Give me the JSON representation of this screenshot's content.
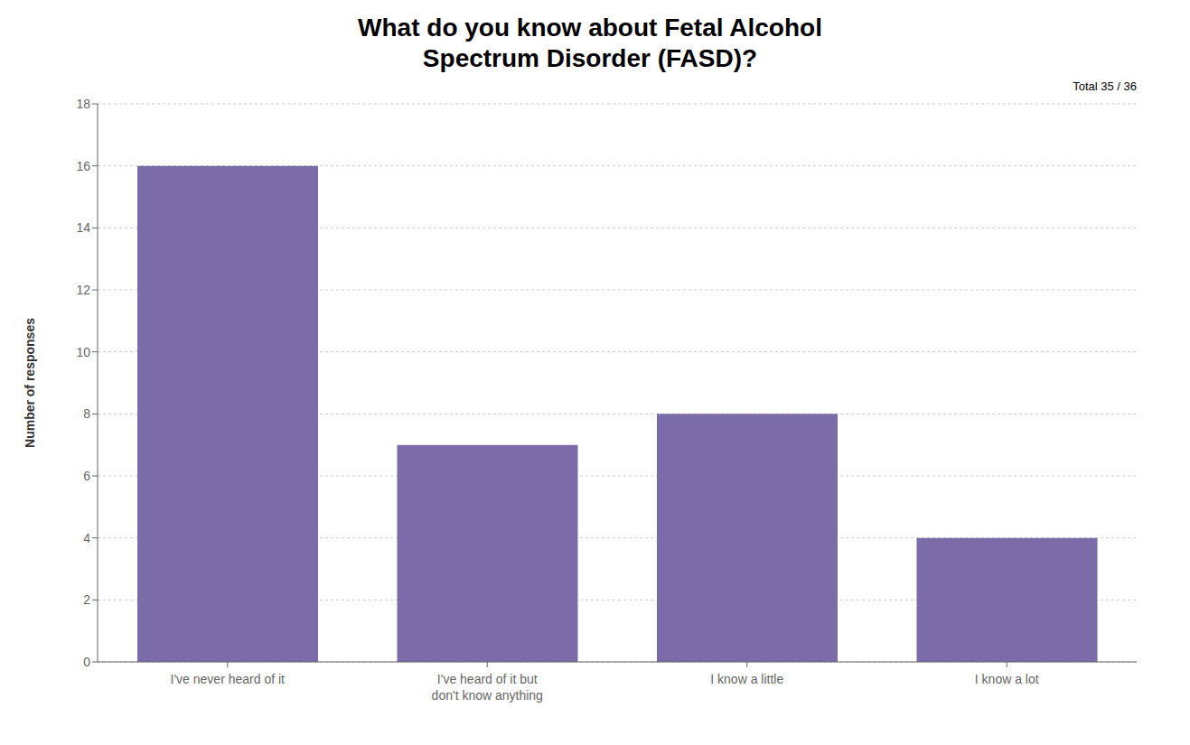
{
  "chart_data": {
    "type": "bar",
    "title": "What do you know about Fetal Alcohol\nSpectrum Disorder (FASD)?",
    "subtitle": "Total 35 / 36",
    "categories": [
      "I've never heard of it",
      "I've heard of it but\ndon't know anything",
      "I know a little",
      "I know a lot"
    ],
    "values": [
      16,
      7,
      8,
      4
    ],
    "color": "#7B6BA8",
    "ylabel": "Number of responses",
    "ylim": [
      0,
      18
    ],
    "yticks": [
      0,
      2,
      4,
      6,
      8,
      10,
      12,
      14,
      16,
      18
    ],
    "grid": true
  }
}
